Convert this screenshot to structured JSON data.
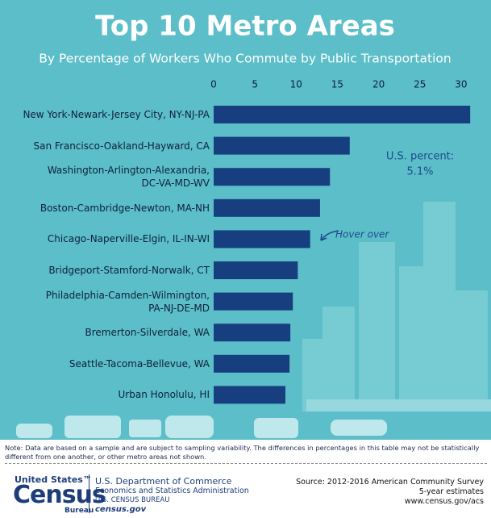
{
  "chart_data": {
    "type": "bar",
    "orientation": "horizontal",
    "title": "Top 10 Metro Areas",
    "subtitle": "By Percentage of Workers Who Commute by Public Transportation",
    "categories": [
      "New York-Newark-Jersey City, NY-NJ-PA",
      "San Francisco-Oakland-Hayward, CA",
      "Washington-Arlington-Alexandria,\nDC-VA-MD-WV",
      "Boston-Cambridge-Newton, MA-NH",
      "Chicago-Naperville-Elgin, IL-IN-WI",
      "Bridgeport-Stamford-Norwalk, CT",
      "Philadelphia-Camden-Wilmington,\nPA-NJ-DE-MD",
      "Bremerton-Silverdale, WA",
      "Seattle-Tacoma-Bellevue, WA",
      "Urban Honolulu, HI"
    ],
    "values": [
      31.1,
      16.5,
      14.1,
      12.9,
      11.7,
      10.2,
      9.6,
      9.3,
      9.2,
      8.7
    ],
    "color": "#173f80",
    "xlim": [
      0,
      32
    ],
    "xticks": [
      0,
      5,
      10,
      15,
      20,
      25,
      30
    ],
    "annotations": [
      "U.S. percent:",
      "5.1%",
      "Hover over"
    ]
  },
  "note": "Note: Data are based on a sample and are subject to sampling variability. The differences in percentages in this table may not be statistically different from one another, or other metro areas not shown.",
  "footer": {
    "logo_top": "United States™",
    "logo_main": "Census",
    "logo_bottom": "Bureau",
    "department": [
      "U.S. Department of Commerce",
      "Economics and Statistics Administration",
      "U.S. CENSUS BUREAU",
      "census.gov"
    ],
    "source": [
      "Source: 2012-2016 American Community Survey",
      "5-year estimates",
      "www.census.gov/acs"
    ]
  }
}
